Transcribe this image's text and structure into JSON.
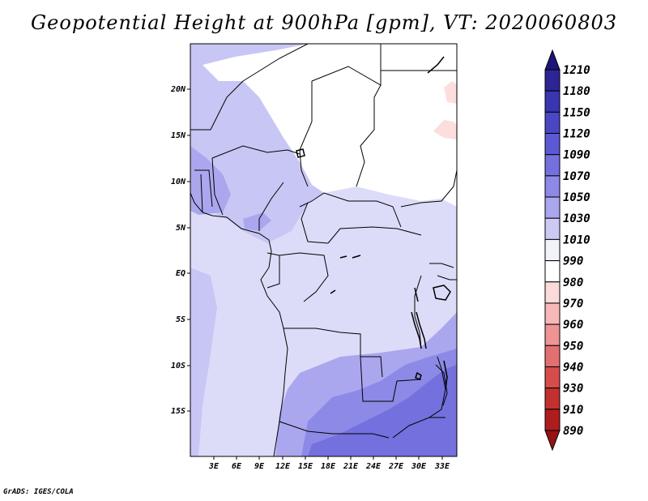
{
  "title": "Geopotential Height at 900hPa [gpm], VT: 2020060803",
  "credit": "GrADS: IGES/COLA",
  "map": {
    "lat_ticks": [
      "20N",
      "15N",
      "10N",
      "5N",
      "EQ",
      "5S",
      "10S",
      "15S"
    ],
    "lon_ticks": [
      "3E",
      "6E",
      "9E",
      "12E",
      "15E",
      "18E",
      "21E",
      "24E",
      "27E",
      "30E",
      "33E"
    ]
  },
  "colorbar": {
    "levels": [
      "1210",
      "1180",
      "1150",
      "1120",
      "1090",
      "1070",
      "1050",
      "1030",
      "1010",
      "990",
      "980",
      "970",
      "960",
      "950",
      "940",
      "930",
      "910",
      "890"
    ],
    "colors": [
      "#1e1478",
      "#2d2596",
      "#3a35b0",
      "#4a46c4",
      "#5d59d4",
      "#7470de",
      "#8d89e6",
      "#aaa7ee",
      "#cccaf5",
      "#f2f2fb",
      "#ffffff",
      "#fbdada",
      "#f6b8b8",
      "#ee9494",
      "#e37070",
      "#d64c4c",
      "#c33030",
      "#ae1d1d",
      "#961212"
    ]
  },
  "field_colors": {
    "c1": "#ffffff",
    "c2": "#dddcf8",
    "c3": "#c8c6f4",
    "c4": "#aaa7ee",
    "c5": "#8d89e6",
    "c6": "#7470de",
    "pink": "#fcdede"
  }
}
